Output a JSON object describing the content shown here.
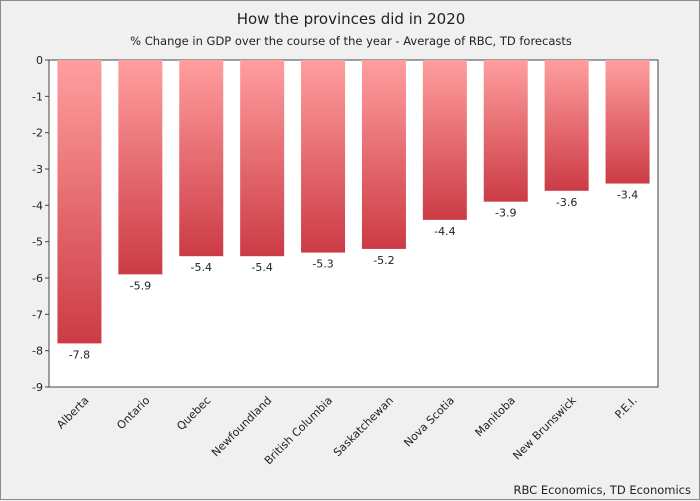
{
  "chart_data": {
    "type": "bar",
    "title": "How the provinces did in 2020",
    "subtitle": "% Change in GDP over the course of the year - Average of RBC, TD forecasts",
    "source": "RBC Economics, TD Economics",
    "categories": [
      "Alberta",
      "Ontario",
      "Quebec",
      "Newfoundland",
      "British Columbia",
      "Saskatchewan",
      "Nova Scotia",
      "Manitoba",
      "New Brunswick",
      "P.E.I."
    ],
    "values": [
      -7.8,
      -5.9,
      -5.4,
      -5.4,
      -5.3,
      -5.2,
      -4.4,
      -3.9,
      -3.6,
      -3.4
    ],
    "data_labels": [
      "-7.8",
      "-5.9",
      "-5.4",
      "-5.4",
      "-5.3",
      "-5.2",
      "-4.4",
      "-3.9",
      "-3.6",
      "-3.4"
    ],
    "yticks": [
      0,
      -1,
      -2,
      -3,
      -4,
      -5,
      -6,
      -7,
      -8,
      -9
    ],
    "ylim": [
      -9,
      0
    ],
    "xlabel": "",
    "ylabel": "",
    "grid": false,
    "legend": "none",
    "colors": {
      "bar_top": "#ff9e9e",
      "bar_bottom": "#cc3b45",
      "plot_bg": "#ffffff",
      "frame_bg": "#f0f0f0"
    }
  }
}
